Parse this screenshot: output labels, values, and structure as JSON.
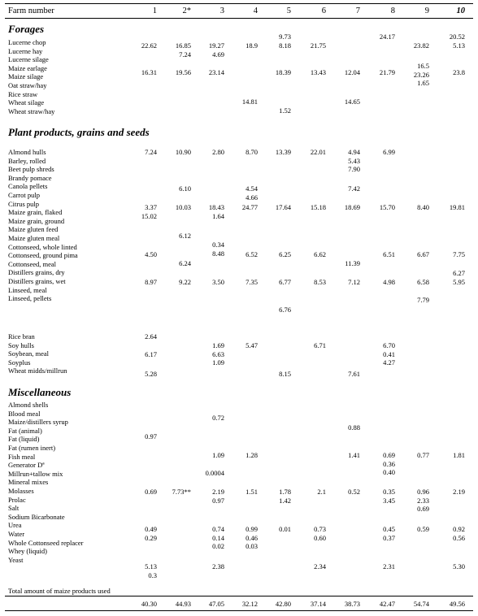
{
  "header": {
    "farm_label": "Farm number",
    "columns": [
      "1",
      "2*",
      "3",
      "4",
      "5",
      "6",
      "7",
      "8",
      "9",
      "10"
    ]
  },
  "sections": [
    {
      "title": "Forages",
      "labels": "Lucerne chop\nLucerne hay\nLucerne silage\nMaize earlage\nMaize silage\nOat straw/hay\nRice straw\nWheat silage\nWheat straw/hay",
      "groups": [
        [
          "",
          "",
          "",
          "",
          "9.73\n8.18",
          "",
          "",
          "24.17",
          "",
          "20.52\n5.13"
        ],
        [
          "22.62",
          "16.85\n7.24",
          "19.27\n4.69",
          "18.9",
          "",
          "21.75",
          "",
          "",
          "23.82",
          ""
        ],
        [
          "",
          "",
          "",
          "",
          "",
          "",
          "",
          "",
          "16.5\n23.26\n1.65",
          ""
        ],
        [
          "16.31",
          "19.56",
          "23.14",
          "",
          "18.39",
          "13.43",
          "12.04",
          "21.79",
          "",
          "23.8"
        ],
        [
          "",
          "",
          "",
          "14.81",
          "",
          "",
          "14.65",
          "",
          "",
          ""
        ],
        [
          "",
          "",
          "",
          "",
          "1.52",
          "",
          "",
          "",
          "",
          ""
        ]
      ]
    },
    {
      "title": "Plant products, grains and seeds",
      "labels": "Almond hulls\nBarley, rolled\nBeet pulp shreds\nBrandy pomace\nCanola pellets\nCarrot pulp\nCitrus pulp\nMaize grain, flaked\nMaize grain, ground\nMaize gluten feed\nMaize gluten meal\nCottonseed, whole linted\nCottonseed, ground pima\nCottonseed, meal\nDistillers grains, dry\nDistillers grains, wet\nLinseed, meal\nLinseed, pellets",
      "labels2": "Rice bran\nSoy hulls\nSoybean, meal\nSoyplus\nWheat midds/millrun",
      "groups": [
        [
          "7.24",
          "10.90",
          "2.80",
          "8.70",
          "13.39",
          "22.01",
          "4.94\n5.43\n7.90",
          "6.99",
          "",
          ""
        ],
        [
          "",
          "6.10",
          "",
          "4.54\n4.66",
          "",
          "",
          "7.42",
          "",
          "",
          ""
        ],
        [
          "3.37\n15.02",
          "10.03",
          "18.43\n1.64",
          "24.77",
          "17.64",
          "15.18",
          "18.69",
          "15.70",
          "8.40",
          "19.81"
        ],
        [
          "",
          "6.12",
          "",
          "",
          "",
          "",
          "",
          "",
          "",
          ""
        ],
        [
          "",
          "",
          "0.34\n8.48",
          "",
          "",
          "",
          "",
          "",
          "",
          ""
        ],
        [
          "4.50",
          "",
          "",
          "6.52",
          "6.25",
          "6.62",
          "",
          "6.51",
          "6.67",
          "7.75"
        ],
        [
          "",
          "6.24",
          "",
          "",
          "",
          "",
          "11.39",
          "",
          "",
          ""
        ],
        [
          "",
          "",
          "",
          "",
          "",
          "",
          "",
          "",
          "",
          "6.27\n5.95"
        ],
        [
          "8.97",
          "9.22",
          "3.50",
          "7.35",
          "6.77",
          "8.53",
          "7.12",
          "4.98",
          "6.58",
          ""
        ],
        [
          "",
          "",
          "",
          "",
          "",
          "",
          "",
          "",
          "7.79",
          ""
        ],
        [
          "",
          "",
          "",
          "",
          "6.76",
          "",
          "",
          "",
          "",
          ""
        ],
        [
          "2.64",
          "",
          "",
          "",
          "",
          "",
          "",
          "",
          "",
          ""
        ],
        [
          "",
          "",
          "1.69\n6.63\n1.09",
          "5.47",
          "",
          "6.71",
          "",
          "6.70\n0.41\n4.27",
          "",
          ""
        ],
        [
          "6.17",
          "",
          "",
          "",
          "",
          "",
          "",
          "",
          "",
          ""
        ],
        [
          "5.28",
          "",
          "",
          "",
          "8.15",
          "",
          "7.61",
          "",
          "",
          ""
        ]
      ]
    },
    {
      "title": "Miscellaneous",
      "labels": "Almond shells\nBlood meal\nMaize/distillers syrup\nFat (animal)\nFat (liquid)\nFat (rumen inert)\nFish meal\nGenerator Dª\nMillrun+tallow mix\nMineral mixes\nMolasses\nProlac\nSalt\nSodium Bicarbonate\nUrea\nWater\nWhole Cottonseed replacer\nWhey (liquid)\nYeast",
      "groups": [
        [
          "",
          "",
          "0.72",
          "",
          "",
          "",
          "",
          "",
          "",
          ""
        ],
        [
          "",
          "",
          "",
          "",
          "",
          "",
          "0.88",
          "",
          "",
          ""
        ],
        [
          "0.97",
          "",
          "",
          "",
          "",
          "",
          "",
          "",
          "",
          ""
        ],
        [
          "",
          "",
          "1.09",
          "1.28",
          "",
          "",
          "1.41",
          "0.69\n0.36\n0.40",
          "0.77",
          "1.81"
        ],
        [
          "",
          "",
          "0.0004",
          "",
          "",
          "",
          "",
          "",
          "",
          ""
        ],
        [
          "0.69",
          "7.73**",
          "2.19\n0.97",
          "1.51",
          "1.78\n1.42",
          "2.1",
          "0.52",
          "0.35\n3.45",
          "0.96\n2.33\n0.69",
          "2.19"
        ],
        [
          "0.49\n0.29",
          "",
          "0.74\n0.14\n0.02",
          "0.99\n0.46\n0.03",
          "0.01",
          "0.73\n0.60",
          "",
          "0.45\n0.37",
          "0.59",
          "0.92\n0.56"
        ],
        [
          "5.13\n0.3",
          "",
          "2.38",
          "",
          "",
          "2.34",
          "",
          "2.31",
          "",
          "5.30"
        ]
      ]
    }
  ],
  "totals": {
    "label": "Total amount of maize products used",
    "values": [
      "40.30",
      "44.93",
      "47.05",
      "32.12",
      "42.80",
      "37.14",
      "38.73",
      "42.47",
      "54.74",
      "49.56"
    ]
  }
}
